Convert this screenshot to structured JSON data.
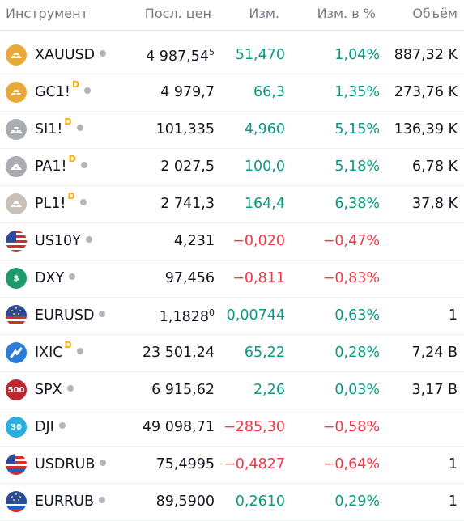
{
  "header": {
    "symbol": "Инструмент",
    "last": "Посл. цен",
    "change": "Изм.",
    "change_pct": "Изм. в %",
    "volume": "Объём"
  },
  "rows": [
    {
      "symbol": "XAUUSD",
      "badge": "",
      "last": "4 987,54",
      "last_sup": "5",
      "change": "51,470",
      "change_pct": "1,04%",
      "volume": "887,32 K",
      "dir": "up",
      "logo": "gold-bars-icon"
    },
    {
      "symbol": "GC1!",
      "badge": "D",
      "last": "4 979,7",
      "last_sup": "",
      "change": "66,3",
      "change_pct": "1,35%",
      "volume": "273,76 K",
      "dir": "up",
      "logo": "gold-bars-icon"
    },
    {
      "symbol": "SI1!",
      "badge": "D",
      "last": "101,335",
      "last_sup": "",
      "change": "4,960",
      "change_pct": "5,15%",
      "volume": "136,39 K",
      "dir": "up",
      "logo": "silver-bars-icon"
    },
    {
      "symbol": "PA1!",
      "badge": "D",
      "last": "2 027,5",
      "last_sup": "",
      "change": "100,0",
      "change_pct": "5,18%",
      "volume": "6,78 K",
      "dir": "up",
      "logo": "silver-bars-icon"
    },
    {
      "symbol": "PL1!",
      "badge": "D",
      "last": "2 741,3",
      "last_sup": "",
      "change": "164,4",
      "change_pct": "6,38%",
      "volume": "37,8 K",
      "dir": "up",
      "logo": "platinum-bars-icon"
    },
    {
      "symbol": "US10Y",
      "badge": "",
      "last": "4,231",
      "last_sup": "",
      "change": "−0,020",
      "change_pct": "−0,47%",
      "volume": "",
      "dir": "down",
      "logo": "us-flag-icon"
    },
    {
      "symbol": "DXY",
      "badge": "",
      "last": "97,456",
      "last_sup": "",
      "change": "−0,811",
      "change_pct": "−0,83%",
      "volume": "",
      "dir": "down",
      "logo": "dollar-icon"
    },
    {
      "symbol": "EURUSD",
      "badge": "",
      "last": "1,1828",
      "last_sup": "0",
      "change": "0,00744",
      "change_pct": "0,63%",
      "volume": "1",
      "dir": "up",
      "logo": "eu-us-flag-icon"
    },
    {
      "symbol": "IXIC",
      "badge": "D",
      "last": "23 501,24",
      "last_sup": "",
      "change": "65,22",
      "change_pct": "0,28%",
      "volume": "7,24 B",
      "dir": "up",
      "logo": "nasdaq-icon"
    },
    {
      "symbol": "SPX",
      "badge": "",
      "last": "6 915,62",
      "last_sup": "",
      "change": "2,26",
      "change_pct": "0,03%",
      "volume": "3,17 B",
      "dir": "up",
      "logo": "spx-500-icon"
    },
    {
      "symbol": "DJI",
      "badge": "",
      "last": "49 098,71",
      "last_sup": "",
      "change": "−285,30",
      "change_pct": "−0,58%",
      "volume": "",
      "dir": "down",
      "logo": "dji-30-icon"
    },
    {
      "symbol": "USDRUB",
      "badge": "",
      "last": "75,4995",
      "last_sup": "",
      "change": "−0,4827",
      "change_pct": "−0,64%",
      "volume": "1",
      "dir": "down",
      "logo": "us-ru-flag-icon"
    },
    {
      "symbol": "EURRUB",
      "badge": "",
      "last": "89,5900",
      "last_sup": "",
      "change": "0,2610",
      "change_pct": "0,29%",
      "volume": "1",
      "dir": "up",
      "logo": "eu-ru-flag-icon"
    }
  ],
  "logo_text": {
    "dxy": "$",
    "spx": "500",
    "dji": "30"
  },
  "colors": {
    "up": "#089981",
    "down": "#f23645",
    "badge": "#f7a600",
    "dot": "#b2b5be"
  }
}
